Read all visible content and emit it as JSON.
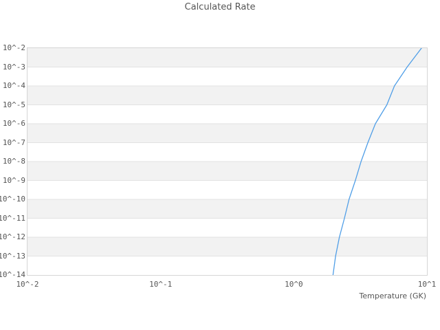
{
  "page": {
    "background": "#ffffff"
  },
  "style": {
    "band_fill": "#f2f2f2",
    "grid_line_color": "#e2e2e2",
    "plot_border_color": "#d5d5d5",
    "text_color": "#555555",
    "line_color": "#4f9ee7"
  },
  "chart_data": {
    "type": "line",
    "title": "Calculated Rate",
    "xlabel": "Temperature (GK)",
    "ylabel": "",
    "xscale": "log",
    "yscale": "log",
    "xlim": [
      0.01,
      10
    ],
    "ylim": [
      1e-14,
      0.01
    ],
    "xtick_labels": [
      "10^-2",
      "10^-1",
      "10^0",
      "10^1"
    ],
    "ytick_labels": [
      "10^-2",
      "10^-3",
      "10^-4",
      "10^-5",
      "10^-6",
      "10^-7",
      "10^-8",
      "10^-9",
      "10^-10",
      "10^-11",
      "10^-12",
      "10^-13",
      "10^-14"
    ],
    "grid": "horizontal-decade-lines-with-alternating-bands",
    "legend": "none",
    "series": [
      {
        "name": "Calculated Rate",
        "color": "#4f9ee7",
        "x": [
          1.97,
          2.06,
          2.2,
          2.4,
          2.6,
          2.9,
          3.2,
          3.6,
          4.1,
          5.0,
          5.7,
          7.1,
          9.1
        ],
        "y": [
          1e-14,
          1e-13,
          1e-12,
          1e-11,
          1e-10,
          1e-09,
          1e-08,
          1e-07,
          1e-06,
          1e-05,
          0.0001,
          0.001,
          0.01
        ]
      }
    ]
  }
}
